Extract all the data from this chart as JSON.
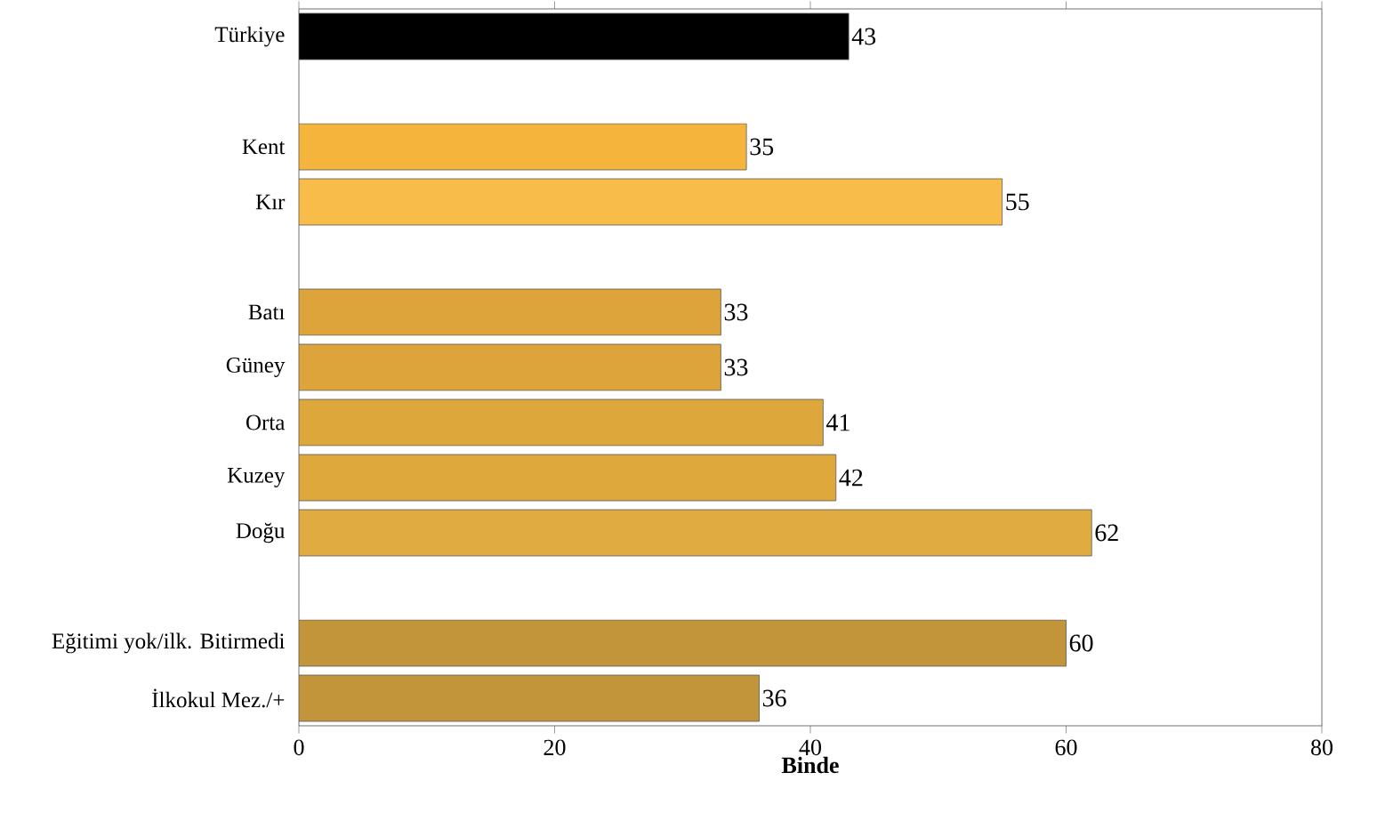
{
  "chart_data": {
    "type": "bar",
    "orientation": "horizontal",
    "xlabel": "Binde",
    "categories": [
      "Türkiye",
      null,
      "Kent",
      "Kır",
      null,
      "Batı",
      "Güney",
      "Orta",
      "Kuzey",
      "Doğu",
      null,
      "Eğitimi yok/ilk. Bitirmedi",
      "İlkokul Mez./+"
    ],
    "values": [
      43,
      null,
      35,
      55,
      null,
      33,
      33,
      41,
      42,
      62,
      null,
      60,
      36
    ],
    "colors": [
      "#000000",
      "#ffffff",
      "#f5b53c",
      "#f8bd48",
      "#ffffff",
      "#dca43a",
      "#dca43a",
      "#dea73c",
      "#dea83d",
      "#e0ac42",
      "#ffffff",
      "#c3953a",
      "#c3953a"
    ],
    "xlim": [
      0,
      80
    ],
    "xticks": [
      0,
      20,
      40,
      60,
      80
    ],
    "data_labels": true
  }
}
